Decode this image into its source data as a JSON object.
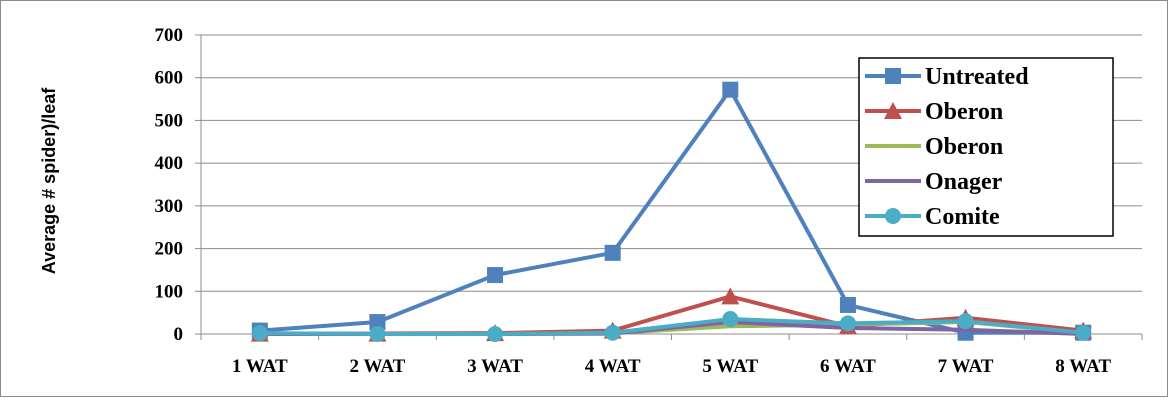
{
  "chart_data": {
    "type": "line",
    "title": "",
    "xlabel": "",
    "ylabel": "Average # spider)/leaf",
    "categories": [
      "1 WAT",
      "2 WAT",
      "3 WAT",
      "4 WAT",
      "5 WAT",
      "6 WAT",
      "7 WAT",
      "8 WAT"
    ],
    "ylim": [
      0,
      700
    ],
    "yticks": [
      "0",
      "100",
      "200",
      "300",
      "400",
      "500",
      "600",
      "700"
    ],
    "grid": "horizontal",
    "legend_position": "top-right",
    "series": [
      {
        "name": "Untreated",
        "color": "#4F81BD",
        "marker": "square",
        "values": [
          8,
          28,
          138,
          190,
          572,
          68,
          3,
          3
        ]
      },
      {
        "name": "Oberon",
        "color": "#C0504D",
        "marker": "triangle",
        "values": [
          1,
          1,
          2,
          8,
          88,
          18,
          38,
          8
        ]
      },
      {
        "name": "Oberon",
        "color": "#9BBB59",
        "marker": "none",
        "values": [
          0,
          0,
          0,
          2,
          18,
          22,
          28,
          3
        ]
      },
      {
        "name": "Onager",
        "color": "#8064A2",
        "marker": "none",
        "values": [
          0,
          0,
          0,
          1,
          28,
          14,
          10,
          0
        ]
      },
      {
        "name": "Comite",
        "color": "#4BACC6",
        "marker": "circle",
        "values": [
          2,
          0,
          0,
          3,
          35,
          25,
          30,
          3
        ]
      }
    ]
  }
}
